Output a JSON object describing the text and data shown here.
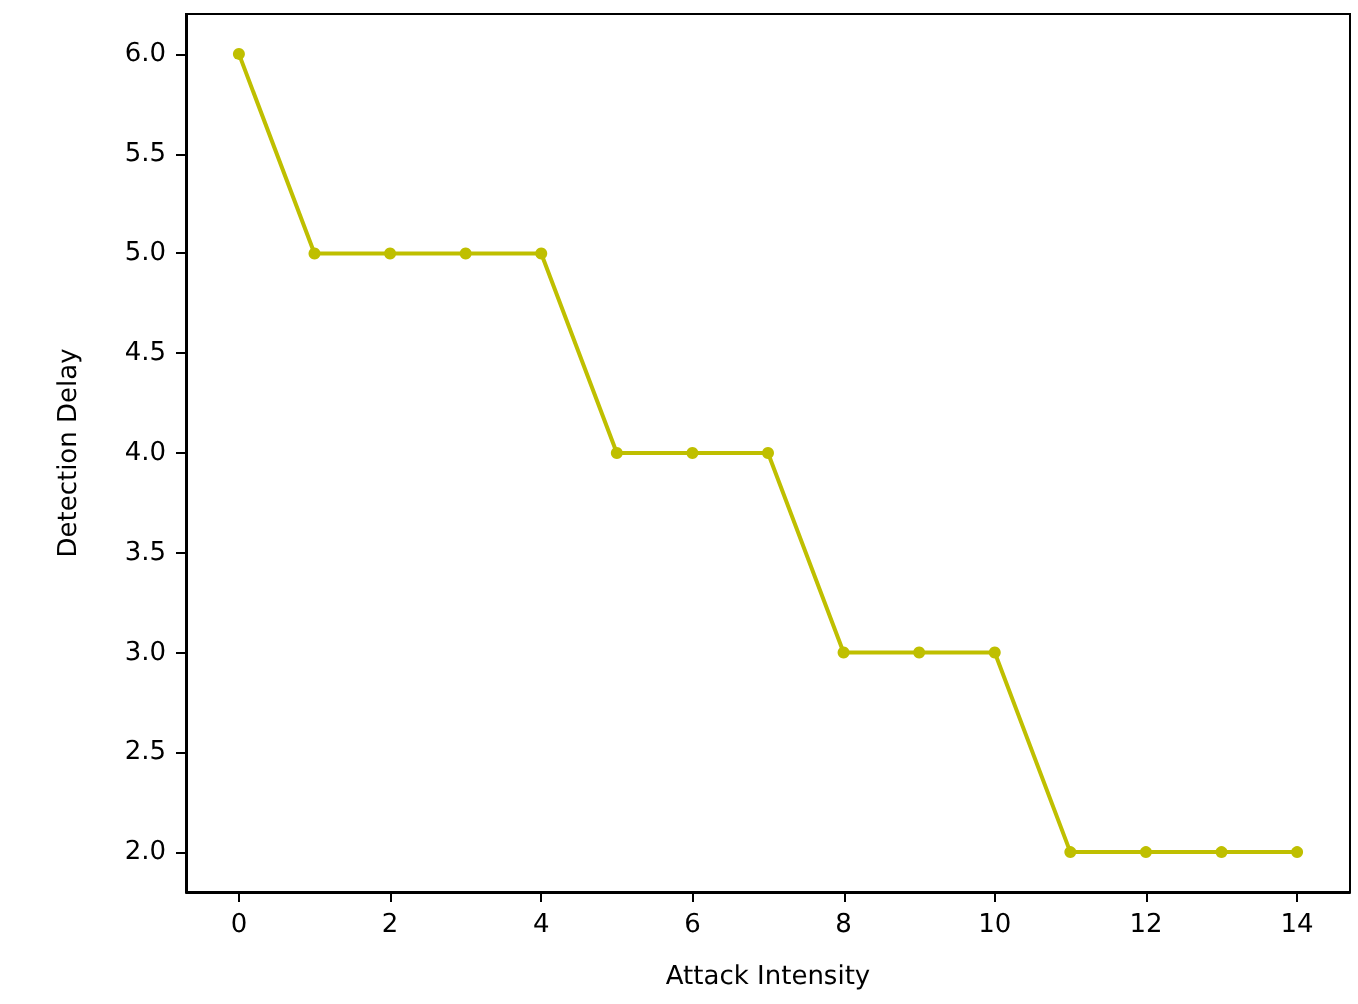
{
  "chart_data": {
    "type": "line",
    "xlabel": "Attack Intensity",
    "ylabel": "Detection Delay",
    "x": [
      0,
      1,
      2,
      3,
      4,
      5,
      6,
      7,
      8,
      9,
      10,
      11,
      12,
      13,
      14
    ],
    "series": [
      {
        "color": "#bfbf00",
        "values": [
          6,
          5,
          5,
          5,
          5,
          4,
          4,
          4,
          3,
          3,
          3,
          2,
          2,
          2,
          2
        ]
      }
    ],
    "xlim": [
      -0.7,
      14.7
    ],
    "xticks": [
      0,
      2,
      4,
      6,
      8,
      10,
      12,
      14
    ],
    "ylim": [
      1.8,
      6.2
    ],
    "yticks": [
      {
        "value": 2,
        "label": "2.0"
      },
      {
        "value": 2.5,
        "label": "2.5"
      },
      {
        "value": 3,
        "label": "3.0"
      },
      {
        "value": 3.5,
        "label": "3.5"
      },
      {
        "value": 4,
        "label": "4.0"
      },
      {
        "value": 4.5,
        "label": "4.5"
      },
      {
        "value": 5,
        "label": "5.0"
      },
      {
        "value": 5.5,
        "label": "5.5"
      },
      {
        "value": 6,
        "label": "6.0"
      }
    ],
    "grid": false,
    "marker": "circle",
    "line_style": "solid"
  }
}
